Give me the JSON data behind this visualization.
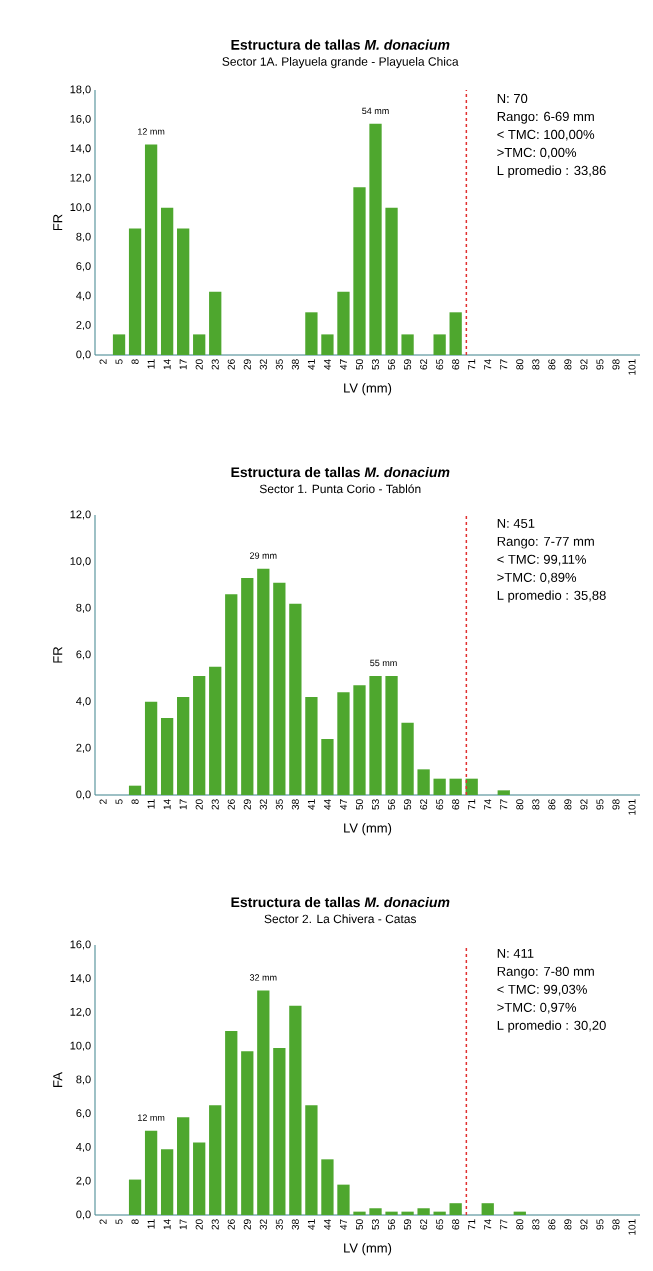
{
  "chart_data": [
    {
      "type": "bar",
      "title": "Estructura de tallas *M. donacium*",
      "subtitle": "Sector 1A. Playuela  grande  - Playuela  Chica",
      "xlabel": "LV (mm)",
      "ylabel": "FR",
      "color": "#4ea72e",
      "x": [
        2,
        5,
        8,
        11,
        14,
        17,
        20,
        23,
        26,
        29,
        32,
        35,
        38,
        41,
        44,
        47,
        50,
        53,
        56,
        59,
        62,
        65,
        68,
        71,
        74,
        77,
        80,
        83,
        86,
        89,
        92,
        95,
        98,
        101
      ],
      "values": [
        0,
        1.4,
        8.6,
        14.3,
        10.0,
        8.6,
        1.4,
        4.3,
        0,
        0,
        0,
        0,
        0,
        2.9,
        1.4,
        4.3,
        11.4,
        15.7,
        10.0,
        1.4,
        0,
        1.4,
        2.9,
        0,
        0,
        0,
        0,
        0,
        0,
        0,
        0,
        0,
        0,
        0
      ],
      "xlim": [
        0.5,
        102.5
      ],
      "xticks": [
        2,
        5,
        8,
        11,
        14,
        17,
        20,
        23,
        26,
        29,
        32,
        35,
        38,
        41,
        44,
        47,
        50,
        53,
        56,
        59,
        62,
        65,
        68,
        71,
        74,
        77,
        80,
        83,
        86,
        89,
        92,
        95,
        98,
        101
      ],
      "ylim": [
        0,
        18
      ],
      "yticks": [
        {
          "value": 0,
          "label": "0,0"
        },
        {
          "value": 2,
          "label": "2,0"
        },
        {
          "value": 4,
          "label": "4,0"
        },
        {
          "value": 6,
          "label": "6,0"
        },
        {
          "value": 8,
          "label": "8,0"
        },
        {
          "value": 10,
          "label": "10,0"
        },
        {
          "value": 12,
          "label": "12,0"
        },
        {
          "value": 14,
          "label": "14,0"
        },
        {
          "value": 16,
          "label": "16,0"
        },
        {
          "value": 18,
          "label": "18,0"
        }
      ],
      "ref_lines": [
        {
          "axis": "x",
          "value": 70,
          "color": "#e03030",
          "line_style": "dashed"
        }
      ],
      "annotations": [
        {
          "text": "12 mm",
          "x": 11,
          "y": 14.3
        },
        {
          "text": "54 mm",
          "x": 53,
          "y": 15.7
        },
        "N: 70",
        "Rango: 6-69 mm",
        "< TMC: 100,00%",
        ">TMC: 0,00%",
        "L promedio : 33,86"
      ]
    },
    {
      "type": "bar",
      "title": "Estructura de tallas *M. donacium*",
      "subtitle": "Sector 1. Punta  Corio  - Tablón",
      "xlabel": "LV (mm)",
      "ylabel": "FR",
      "color": "#4ea72e",
      "x": [
        2,
        5,
        8,
        11,
        14,
        17,
        20,
        23,
        26,
        29,
        32,
        35,
        38,
        41,
        44,
        47,
        50,
        53,
        56,
        59,
        62,
        65,
        68,
        71,
        74,
        77,
        80,
        83,
        86,
        89,
        92,
        95,
        98,
        101
      ],
      "values": [
        0,
        0,
        0.4,
        4.0,
        3.3,
        4.2,
        5.1,
        5.5,
        8.6,
        9.3,
        9.7,
        9.1,
        8.2,
        4.2,
        2.4,
        4.4,
        4.7,
        5.1,
        5.1,
        3.1,
        1.1,
        0.7,
        0.7,
        0.7,
        0,
        0.2,
        0,
        0,
        0,
        0,
        0,
        0,
        0,
        0
      ],
      "xlim": [
        0.5,
        102.5
      ],
      "xticks": [
        2,
        5,
        8,
        11,
        14,
        17,
        20,
        23,
        26,
        29,
        32,
        35,
        38,
        41,
        44,
        47,
        50,
        53,
        56,
        59,
        62,
        65,
        68,
        71,
        74,
        77,
        80,
        83,
        86,
        89,
        92,
        95,
        98,
        101
      ],
      "ylim": [
        0,
        12
      ],
      "yticks": [
        {
          "value": 0,
          "label": "0,0"
        },
        {
          "value": 2,
          "label": "2,0"
        },
        {
          "value": 4,
          "label": "4,0"
        },
        {
          "value": 6,
          "label": "6,0"
        },
        {
          "value": 8,
          "label": "8,0"
        },
        {
          "value": 10,
          "label": "10,0"
        },
        {
          "value": 12,
          "label": "12,0"
        }
      ],
      "ref_lines": [
        {
          "axis": "x",
          "value": 70,
          "color": "#e03030",
          "line_style": "dashed"
        }
      ],
      "annotations": [
        {
          "text": "29 mm",
          "x": 32,
          "y": 9.7
        },
        {
          "text": "55 mm",
          "x": 54.5,
          "y": 5.1
        },
        "N: 451",
        "Rango: 7-77 mm",
        "< TMC: 99,11%",
        ">TMC: 0,89%",
        "L promedio : 35,88"
      ]
    },
    {
      "type": "bar",
      "title": "Estructura de tallas *M. donacium*",
      "subtitle": "Sector 2. La Chivera  - Catas",
      "xlabel": "LV (mm)",
      "ylabel": "FA",
      "color": "#4ea72e",
      "x": [
        2,
        5,
        8,
        11,
        14,
        17,
        20,
        23,
        26,
        29,
        32,
        35,
        38,
        41,
        44,
        47,
        50,
        53,
        56,
        59,
        62,
        65,
        68,
        71,
        74,
        77,
        80,
        83,
        86,
        89,
        92,
        95,
        98,
        101
      ],
      "values": [
        0,
        0,
        2.1,
        5.0,
        3.9,
        5.8,
        4.3,
        6.5,
        10.9,
        9.7,
        13.3,
        9.9,
        12.4,
        6.5,
        3.3,
        1.8,
        0.2,
        0.4,
        0.2,
        0.2,
        0.4,
        0.2,
        0.7,
        0,
        0.7,
        0,
        0.2,
        0,
        0,
        0,
        0,
        0,
        0,
        0
      ],
      "xlim": [
        0.5,
        102.5
      ],
      "xticks": [
        2,
        5,
        8,
        11,
        14,
        17,
        20,
        23,
        26,
        29,
        32,
        35,
        38,
        41,
        44,
        47,
        50,
        53,
        56,
        59,
        62,
        65,
        68,
        71,
        74,
        77,
        80,
        83,
        86,
        89,
        92,
        95,
        98,
        101
      ],
      "ylim": [
        0,
        16
      ],
      "yticks": [
        {
          "value": 0,
          "label": "0,0"
        },
        {
          "value": 2,
          "label": "2,0"
        },
        {
          "value": 4,
          "label": "4,0"
        },
        {
          "value": 6,
          "label": "6,0"
        },
        {
          "value": 8,
          "label": "8,0"
        },
        {
          "value": 10,
          "label": "10,0"
        },
        {
          "value": 12,
          "label": "12,0"
        },
        {
          "value": 14,
          "label": "14,0"
        },
        {
          "value": 16,
          "label": "16,0"
        }
      ],
      "ref_lines": [
        {
          "axis": "x",
          "value": 70,
          "color": "#e03030",
          "line_style": "dashed"
        }
      ],
      "annotations": [
        {
          "text": "32 mm",
          "x": 32,
          "y": 13.3
        },
        {
          "text": "12 mm",
          "x": 11,
          "y": 5.0
        },
        "N: 411",
        "Rango: 7-80 mm",
        "< TMC: 99,03%",
        ">TMC: 0,97%",
        "L promedio : 30,20"
      ]
    }
  ]
}
